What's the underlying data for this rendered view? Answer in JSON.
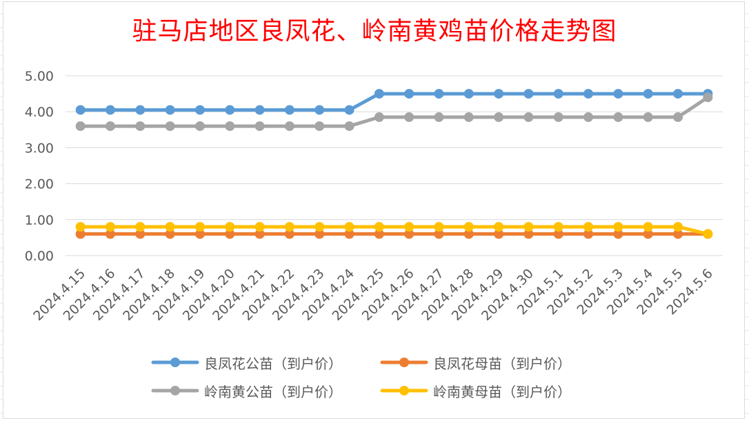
{
  "chart_data": {
    "type": "line",
    "title": "驻马店地区良凤花、岭南黄鸡苗价格走势图",
    "xlabel": "",
    "ylabel": "",
    "categories": [
      "2024.4.15",
      "2024.4.16",
      "2024.4.17",
      "2024.4.18",
      "2024.4.19",
      "2024.4.20",
      "2024.4.21",
      "2024.4.22",
      "2024.4.23",
      "2024.4.24",
      "2024.4.25",
      "2024.4.26",
      "2024.4.27",
      "2024.4.28",
      "2024.4.29",
      "2024.4.30",
      "2024.5.1",
      "2024.5.2",
      "2024.5.3",
      "2024.5.4",
      "2024.5.5",
      "2024.5.6"
    ],
    "ylim": [
      0,
      5
    ],
    "yticks": [
      "0.00",
      "1.00",
      "2.00",
      "3.00",
      "4.00",
      "5.00"
    ],
    "grid": true,
    "legend_position": "bottom",
    "series": [
      {
        "name": "良凤花公苗（到户价）",
        "color": "#5b9bd5",
        "values": [
          4.05,
          4.05,
          4.05,
          4.05,
          4.05,
          4.05,
          4.05,
          4.05,
          4.05,
          4.05,
          4.5,
          4.5,
          4.5,
          4.5,
          4.5,
          4.5,
          4.5,
          4.5,
          4.5,
          4.5,
          4.5,
          4.5
        ]
      },
      {
        "name": "良凤花母苗（到户价）",
        "color": "#ed7d31",
        "values": [
          0.6,
          0.6,
          0.6,
          0.6,
          0.6,
          0.6,
          0.6,
          0.6,
          0.6,
          0.6,
          0.6,
          0.6,
          0.6,
          0.6,
          0.6,
          0.6,
          0.6,
          0.6,
          0.6,
          0.6,
          0.6,
          0.6
        ]
      },
      {
        "name": "岭南黄公苗（到户价）",
        "color": "#a5a5a5",
        "values": [
          3.6,
          3.6,
          3.6,
          3.6,
          3.6,
          3.6,
          3.6,
          3.6,
          3.6,
          3.6,
          3.85,
          3.85,
          3.85,
          3.85,
          3.85,
          3.85,
          3.85,
          3.85,
          3.85,
          3.85,
          3.85,
          4.4
        ]
      },
      {
        "name": "岭南黄母苗（到户价）",
        "color": "#ffc000",
        "values": [
          0.8,
          0.8,
          0.8,
          0.8,
          0.8,
          0.8,
          0.8,
          0.8,
          0.8,
          0.8,
          0.8,
          0.8,
          0.8,
          0.8,
          0.8,
          0.8,
          0.8,
          0.8,
          0.8,
          0.8,
          0.8,
          0.6
        ]
      }
    ]
  }
}
